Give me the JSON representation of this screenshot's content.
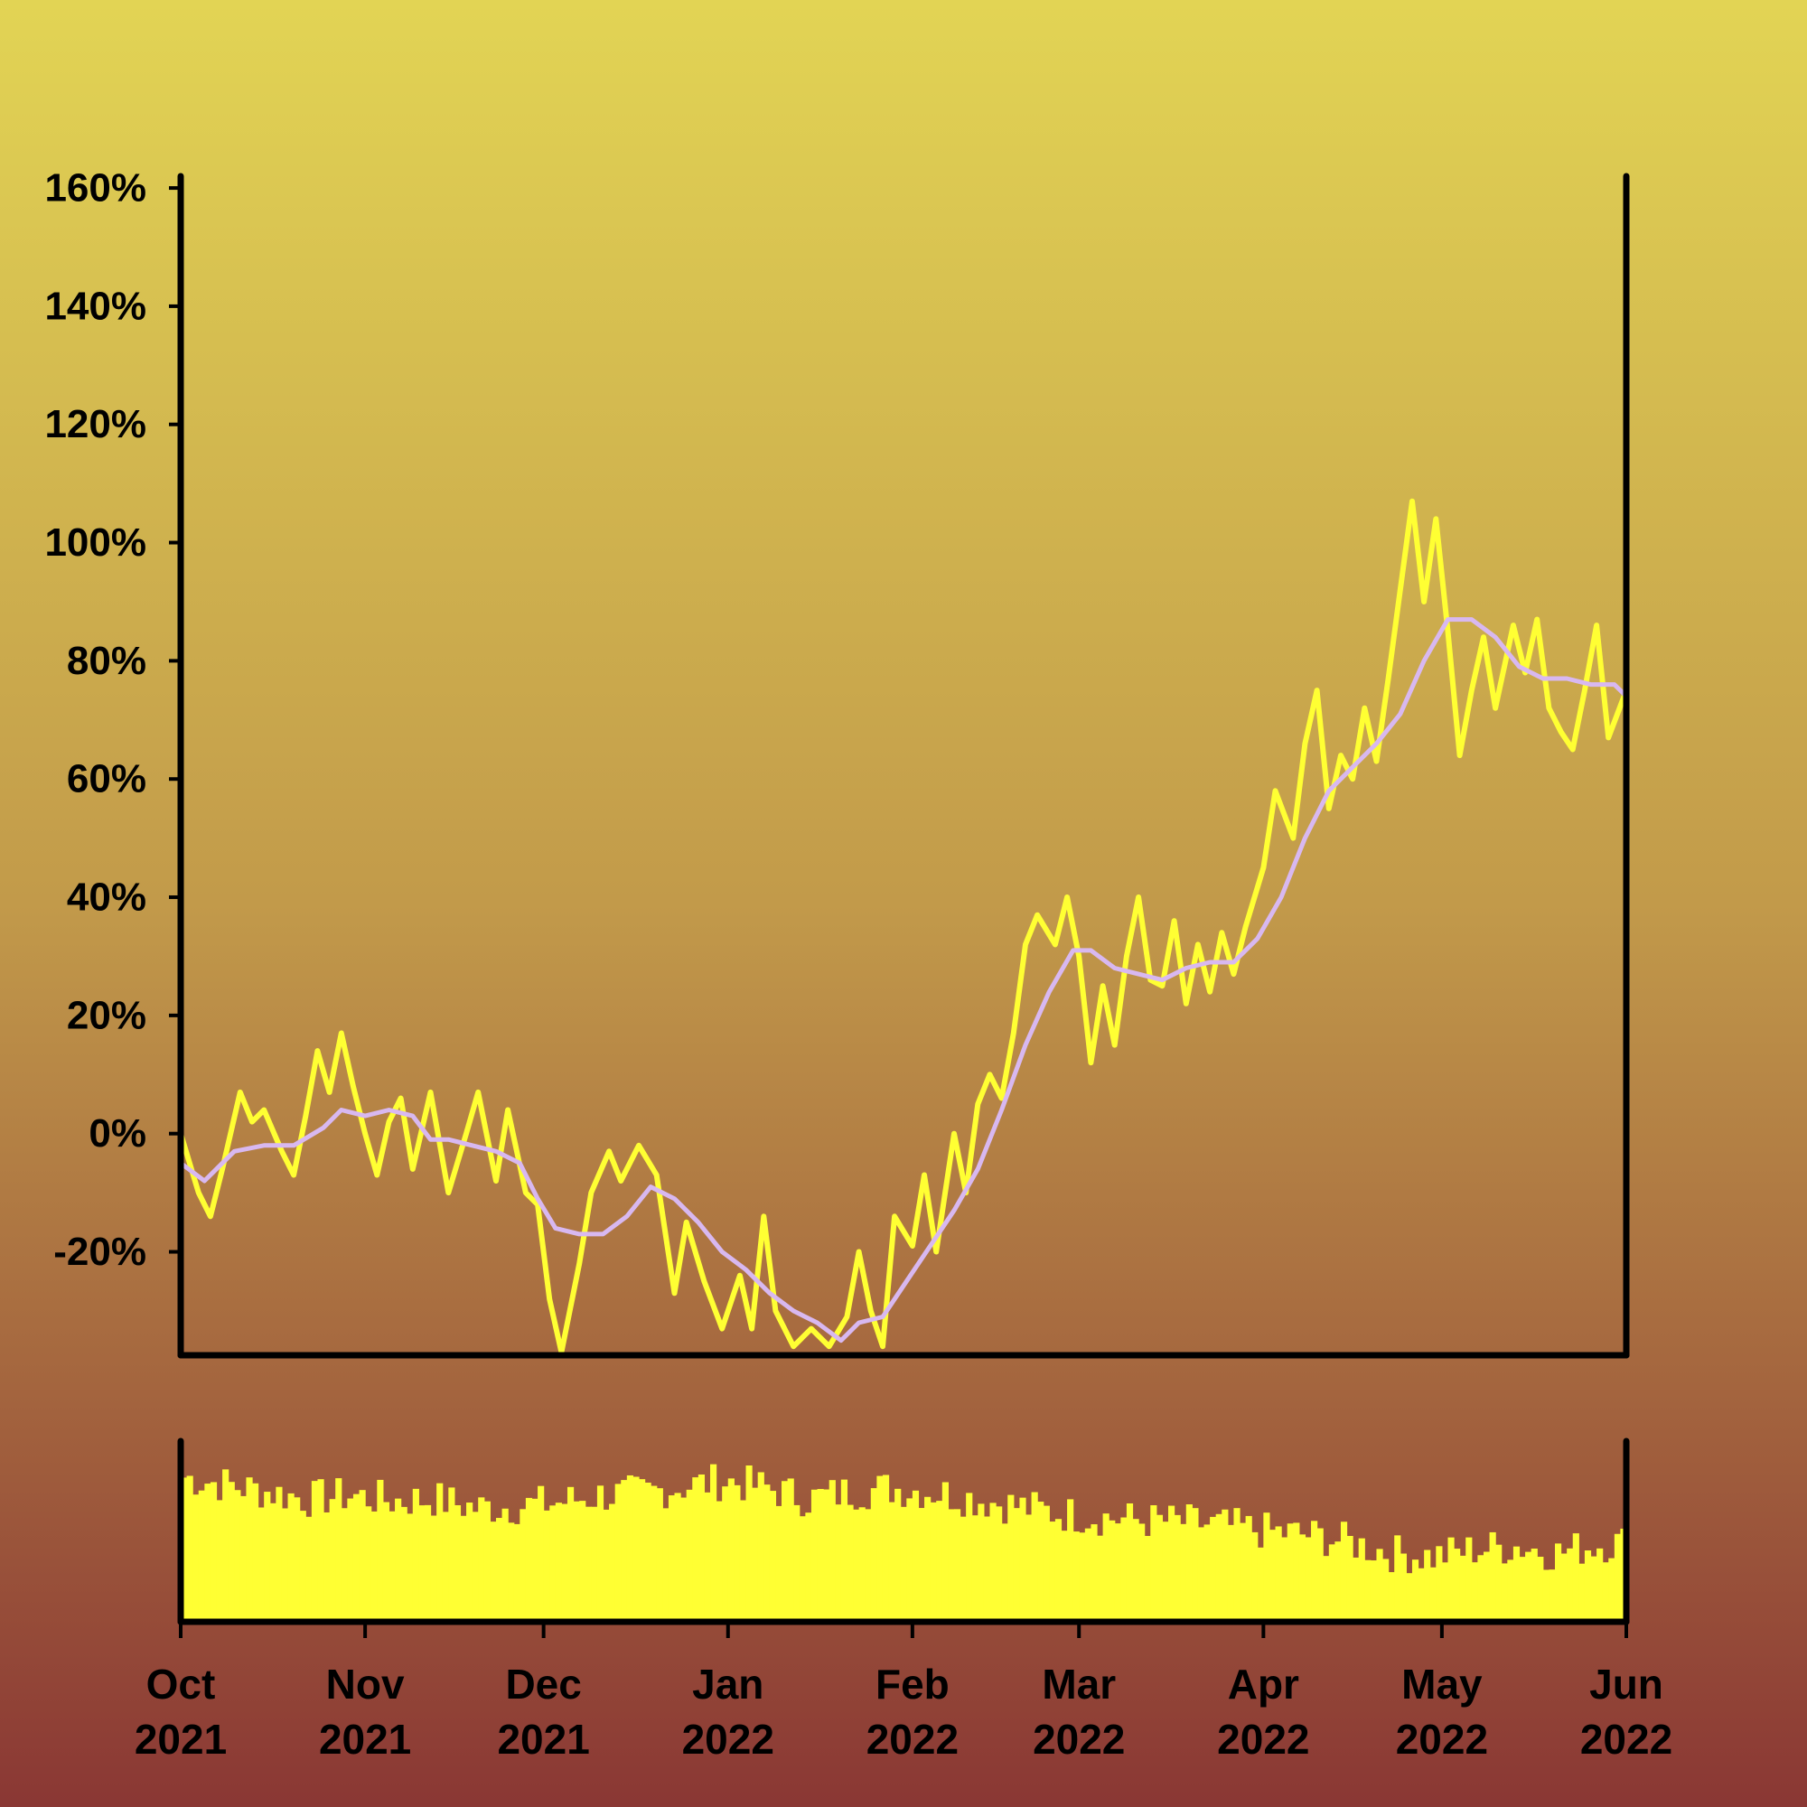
{
  "chart_data": {
    "type": "line",
    "x_range": [
      "2021-10-01",
      "2022-06-01"
    ],
    "y_ticks": [
      "-20%",
      "0%",
      "20%",
      "40%",
      "60%",
      "80%",
      "100%",
      "120%",
      "140%",
      "160%"
    ],
    "y_tick_values": [
      -20,
      0,
      20,
      40,
      60,
      80,
      100,
      120,
      140,
      160
    ],
    "ylim": [
      -37.5,
      162
    ],
    "x_ticks": [
      {
        "date": "2021-10-01",
        "month": "Oct",
        "year": "2021"
      },
      {
        "date": "2021-11-01",
        "month": "Nov",
        "year": "2021"
      },
      {
        "date": "2021-12-01",
        "month": "Dec",
        "year": "2021"
      },
      {
        "date": "2022-01-01",
        "month": "Jan",
        "year": "2022"
      },
      {
        "date": "2022-02-01",
        "month": "Feb",
        "year": "2022"
      },
      {
        "date": "2022-03-01",
        "month": "Mar",
        "year": "2022"
      },
      {
        "date": "2022-04-01",
        "month": "Apr",
        "year": "2022"
      },
      {
        "date": "2022-05-01",
        "month": "May",
        "year": "2022"
      },
      {
        "date": "2022-06-01",
        "month": "Jun",
        "year": "2022"
      }
    ],
    "series": [
      {
        "color": "#ffff33",
        "points": [
          [
            "2021-10-01",
            0
          ],
          [
            "2021-10-04",
            -10
          ],
          [
            "2021-10-06",
            -14
          ],
          [
            "2021-10-08",
            -6
          ],
          [
            "2021-10-11",
            7
          ],
          [
            "2021-10-13",
            2
          ],
          [
            "2021-10-15",
            4
          ],
          [
            "2021-10-18",
            -3
          ],
          [
            "2021-10-20",
            -7
          ],
          [
            "2021-10-22",
            3
          ],
          [
            "2021-10-24",
            14
          ],
          [
            "2021-10-26",
            7
          ],
          [
            "2021-10-28",
            17
          ],
          [
            "2021-10-30",
            8
          ],
          [
            "2021-11-01",
            0
          ],
          [
            "2021-11-03",
            -7
          ],
          [
            "2021-11-05",
            2
          ],
          [
            "2021-11-07",
            6
          ],
          [
            "2021-11-09",
            -6
          ],
          [
            "2021-11-12",
            7
          ],
          [
            "2021-11-15",
            -10
          ],
          [
            "2021-11-18",
            0
          ],
          [
            "2021-11-20",
            7
          ],
          [
            "2021-11-23",
            -8
          ],
          [
            "2021-11-25",
            4
          ],
          [
            "2021-11-28",
            -10
          ],
          [
            "2021-11-30",
            -12
          ],
          [
            "2021-12-02",
            -28
          ],
          [
            "2021-12-04",
            -37
          ],
          [
            "2021-12-07",
            -22
          ],
          [
            "2021-12-09",
            -10
          ],
          [
            "2021-12-12",
            -3
          ],
          [
            "2021-12-14",
            -8
          ],
          [
            "2021-12-17",
            -2
          ],
          [
            "2021-12-20",
            -7
          ],
          [
            "2021-12-23",
            -27
          ],
          [
            "2021-12-25",
            -15
          ],
          [
            "2021-12-28",
            -25
          ],
          [
            "2021-12-31",
            -33
          ],
          [
            "2022-01-03",
            -24
          ],
          [
            "2022-01-05",
            -33
          ],
          [
            "2022-01-07",
            -14
          ],
          [
            "2022-01-09",
            -30
          ],
          [
            "2022-01-12",
            -36
          ],
          [
            "2022-01-15",
            -33
          ],
          [
            "2022-01-18",
            -36
          ],
          [
            "2022-01-21",
            -31
          ],
          [
            "2022-01-23",
            -20
          ],
          [
            "2022-01-25",
            -30
          ],
          [
            "2022-01-27",
            -36
          ],
          [
            "2022-01-29",
            -14
          ],
          [
            "2022-02-01",
            -19
          ],
          [
            "2022-02-03",
            -7
          ],
          [
            "2022-02-05",
            -20
          ],
          [
            "2022-02-08",
            0
          ],
          [
            "2022-02-10",
            -10
          ],
          [
            "2022-02-12",
            5
          ],
          [
            "2022-02-14",
            10
          ],
          [
            "2022-02-16",
            6
          ],
          [
            "2022-02-18",
            17
          ],
          [
            "2022-02-20",
            32
          ],
          [
            "2022-02-22",
            37
          ],
          [
            "2022-02-25",
            32
          ],
          [
            "2022-02-27",
            40
          ],
          [
            "2022-03-01",
            30
          ],
          [
            "2022-03-03",
            12
          ],
          [
            "2022-03-05",
            25
          ],
          [
            "2022-03-07",
            15
          ],
          [
            "2022-03-09",
            30
          ],
          [
            "2022-03-11",
            40
          ],
          [
            "2022-03-13",
            26
          ],
          [
            "2022-03-15",
            25
          ],
          [
            "2022-03-17",
            36
          ],
          [
            "2022-03-19",
            22
          ],
          [
            "2022-03-21",
            32
          ],
          [
            "2022-03-23",
            24
          ],
          [
            "2022-03-25",
            34
          ],
          [
            "2022-03-27",
            27
          ],
          [
            "2022-03-29",
            35
          ],
          [
            "2022-04-01",
            45
          ],
          [
            "2022-04-03",
            58
          ],
          [
            "2022-04-06",
            50
          ],
          [
            "2022-04-08",
            66
          ],
          [
            "2022-04-10",
            75
          ],
          [
            "2022-04-12",
            55
          ],
          [
            "2022-04-14",
            64
          ],
          [
            "2022-04-16",
            60
          ],
          [
            "2022-04-18",
            72
          ],
          [
            "2022-04-20",
            63
          ],
          [
            "2022-04-22",
            77
          ],
          [
            "2022-04-24",
            92
          ],
          [
            "2022-04-26",
            107
          ],
          [
            "2022-04-28",
            90
          ],
          [
            "2022-04-30",
            104
          ],
          [
            "2022-05-02",
            85
          ],
          [
            "2022-05-04",
            64
          ],
          [
            "2022-05-06",
            75
          ],
          [
            "2022-05-08",
            84
          ],
          [
            "2022-05-10",
            72
          ],
          [
            "2022-05-13",
            86
          ],
          [
            "2022-05-15",
            78
          ],
          [
            "2022-05-17",
            87
          ],
          [
            "2022-05-19",
            72
          ],
          [
            "2022-05-21",
            68
          ],
          [
            "2022-05-23",
            65
          ],
          [
            "2022-05-25",
            75
          ],
          [
            "2022-05-27",
            86
          ],
          [
            "2022-05-29",
            67
          ],
          [
            "2022-06-01",
            75
          ]
        ]
      },
      {
        "color": "#d8b8f0",
        "points": [
          [
            "2021-10-01",
            -5
          ],
          [
            "2021-10-05",
            -8
          ],
          [
            "2021-10-10",
            -3
          ],
          [
            "2021-10-15",
            -2
          ],
          [
            "2021-10-20",
            -2
          ],
          [
            "2021-10-25",
            1
          ],
          [
            "2021-10-28",
            4
          ],
          [
            "2021-11-01",
            3
          ],
          [
            "2021-11-05",
            4
          ],
          [
            "2021-11-09",
            3
          ],
          [
            "2021-11-12",
            -1
          ],
          [
            "2021-11-15",
            -1
          ],
          [
            "2021-11-19",
            -2
          ],
          [
            "2021-11-23",
            -3
          ],
          [
            "2021-11-27",
            -5
          ],
          [
            "2021-11-30",
            -11
          ],
          [
            "2021-12-03",
            -16
          ],
          [
            "2021-12-07",
            -17
          ],
          [
            "2021-12-11",
            -17
          ],
          [
            "2021-12-15",
            -14
          ],
          [
            "2021-12-19",
            -9
          ],
          [
            "2021-12-23",
            -11
          ],
          [
            "2021-12-27",
            -15
          ],
          [
            "2021-12-31",
            -20
          ],
          [
            "2022-01-04",
            -23
          ],
          [
            "2022-01-08",
            -27
          ],
          [
            "2022-01-12",
            -30
          ],
          [
            "2022-01-16",
            -32
          ],
          [
            "2022-01-20",
            -35
          ],
          [
            "2022-01-23",
            -32
          ],
          [
            "2022-01-27",
            -31
          ],
          [
            "2022-01-31",
            -25
          ],
          [
            "2022-02-04",
            -19
          ],
          [
            "2022-02-08",
            -13
          ],
          [
            "2022-02-12",
            -6
          ],
          [
            "2022-02-16",
            4
          ],
          [
            "2022-02-20",
            15
          ],
          [
            "2022-02-24",
            24
          ],
          [
            "2022-02-28",
            31
          ],
          [
            "2022-03-03",
            31
          ],
          [
            "2022-03-07",
            28
          ],
          [
            "2022-03-11",
            27
          ],
          [
            "2022-03-15",
            26
          ],
          [
            "2022-03-19",
            28
          ],
          [
            "2022-03-23",
            29
          ],
          [
            "2022-03-27",
            29
          ],
          [
            "2022-03-31",
            33
          ],
          [
            "2022-04-04",
            40
          ],
          [
            "2022-04-08",
            50
          ],
          [
            "2022-04-12",
            58
          ],
          [
            "2022-04-16",
            62
          ],
          [
            "2022-04-20",
            66
          ],
          [
            "2022-04-24",
            71
          ],
          [
            "2022-04-28",
            80
          ],
          [
            "2022-05-02",
            87
          ],
          [
            "2022-05-06",
            87
          ],
          [
            "2022-05-10",
            84
          ],
          [
            "2022-05-14",
            79
          ],
          [
            "2022-05-18",
            77
          ],
          [
            "2022-05-22",
            77
          ],
          [
            "2022-05-26",
            76
          ],
          [
            "2022-05-30",
            76
          ],
          [
            "2022-06-01",
            74
          ]
        ]
      }
    ],
    "volume": {
      "color": "#ffff33",
      "points": [
        [
          "2021-10-01",
          0.8
        ],
        [
          "2021-10-08",
          0.76
        ],
        [
          "2021-10-15",
          0.72
        ],
        [
          "2021-10-22",
          0.68
        ],
        [
          "2021-10-29",
          0.7
        ],
        [
          "2021-11-05",
          0.67
        ],
        [
          "2021-11-12",
          0.68
        ],
        [
          "2021-11-19",
          0.63
        ],
        [
          "2021-11-26",
          0.64
        ],
        [
          "2021-12-03",
          0.66
        ],
        [
          "2021-12-10",
          0.7
        ],
        [
          "2021-12-17",
          0.71
        ],
        [
          "2021-12-24",
          0.75
        ],
        [
          "2021-12-31",
          0.78
        ],
        [
          "2022-01-07",
          0.74
        ],
        [
          "2022-01-14",
          0.68
        ],
        [
          "2022-01-21",
          0.72
        ],
        [
          "2022-01-28",
          0.74
        ],
        [
          "2022-02-04",
          0.72
        ],
        [
          "2022-02-11",
          0.68
        ],
        [
          "2022-02-18",
          0.64
        ],
        [
          "2022-02-25",
          0.6
        ],
        [
          "2022-03-04",
          0.58
        ],
        [
          "2022-03-11",
          0.56
        ],
        [
          "2022-03-18",
          0.55
        ],
        [
          "2022-03-25",
          0.53
        ],
        [
          "2022-04-01",
          0.5
        ],
        [
          "2022-04-08",
          0.48
        ],
        [
          "2022-04-15",
          0.44
        ],
        [
          "2022-04-22",
          0.38
        ],
        [
          "2022-04-29",
          0.36
        ],
        [
          "2022-05-06",
          0.4
        ],
        [
          "2022-05-13",
          0.42
        ],
        [
          "2022-05-20",
          0.38
        ],
        [
          "2022-05-27",
          0.43
        ],
        [
          "2022-06-01",
          0.44
        ]
      ]
    }
  }
}
